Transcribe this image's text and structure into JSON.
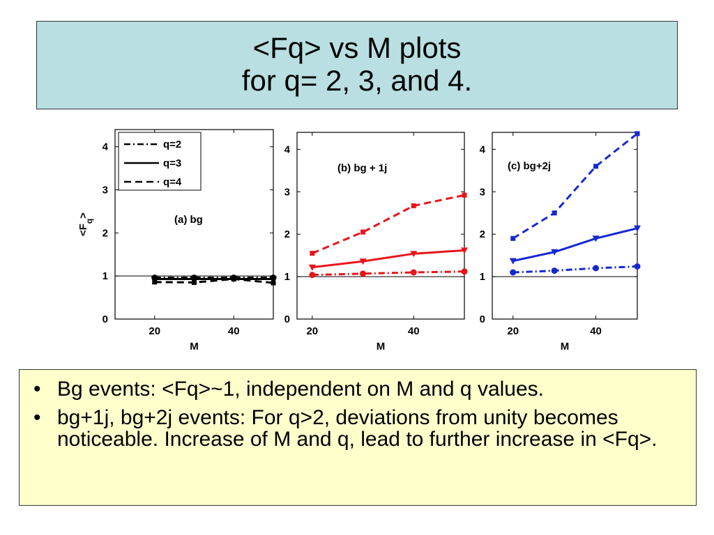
{
  "title": {
    "line1": "<Fq> vs M plots",
    "line2": "for q= 2, 3, and 4."
  },
  "bullets": [
    "Bg events: <Fq>~1, independent on M and q values.",
    "bg+1j, bg+2j events: For q>2, deviations from unity becomes noticeable. Increase of M and q, lead to further increase in <Fq>."
  ],
  "bullet_glyph": "•",
  "colors": {
    "title_bg": "#b9dfe3",
    "bullet_bg": "#ffffcc",
    "panel_a": "#000000",
    "panel_b": "#e8141a",
    "panel_c": "#1428d2"
  },
  "chart_data": [
    {
      "type": "line",
      "annotation": "(a)  bg",
      "xlabel": "M",
      "ylabel": "<F",
      "ylabel_sub": "q",
      "ylabel_sup": ">",
      "xticks": [
        "20",
        "40"
      ],
      "yticks": [
        "0",
        "1",
        "2",
        "3",
        "4"
      ],
      "xlim": [
        10,
        50
      ],
      "ylim": [
        0,
        4.4
      ],
      "reference_line": 1,
      "color": "#000000",
      "legend": [
        "q=2",
        "q=3",
        "q=4"
      ],
      "legend_position": "top-left",
      "x": [
        20,
        30,
        40,
        50
      ],
      "series": [
        {
          "name": "q=2",
          "style": "dashdot",
          "marker": "circle",
          "values": [
            0.96,
            0.96,
            0.96,
            0.96
          ]
        },
        {
          "name": "q=3",
          "style": "solid",
          "marker": "triangle",
          "values": [
            0.93,
            0.93,
            0.93,
            0.93
          ]
        },
        {
          "name": "q=4",
          "style": "dashed",
          "marker": "square",
          "values": [
            0.86,
            0.85,
            0.93,
            0.84
          ]
        }
      ]
    },
    {
      "type": "line",
      "annotation": "(b) bg + 1j",
      "xlabel": "M",
      "xticks": [
        "20",
        "40"
      ],
      "yticks": [
        "0",
        "1",
        "2",
        "3",
        "4"
      ],
      "xlim": [
        17,
        50
      ],
      "ylim": [
        0,
        4.4
      ],
      "reference_line": 1,
      "color": "#e8141a",
      "x": [
        20,
        30,
        40,
        50
      ],
      "series": [
        {
          "style": "dashdot",
          "marker": "circle",
          "values": [
            1.04,
            1.07,
            1.1,
            1.12
          ]
        },
        {
          "style": "solid",
          "marker": "triangle",
          "values": [
            1.22,
            1.36,
            1.54,
            1.62
          ]
        },
        {
          "style": "dashed",
          "marker": "square",
          "values": [
            1.55,
            2.05,
            2.67,
            2.92
          ]
        }
      ]
    },
    {
      "type": "line",
      "annotation": "(c) bg+2j",
      "xlabel": "M",
      "xticks": [
        "20",
        "40"
      ],
      "yticks": [
        "0",
        "1",
        "2",
        "3",
        "4"
      ],
      "xlim": [
        15,
        50
      ],
      "ylim": [
        0,
        4.4
      ],
      "reference_line": 1,
      "color": "#1428d2",
      "x": [
        20,
        30,
        40,
        50
      ],
      "series": [
        {
          "style": "dashdot",
          "marker": "circle",
          "values": [
            1.1,
            1.14,
            1.2,
            1.24
          ]
        },
        {
          "style": "solid",
          "marker": "triangle",
          "values": [
            1.37,
            1.58,
            1.9,
            2.14
          ]
        },
        {
          "style": "dashed",
          "marker": "square",
          "values": [
            1.9,
            2.5,
            3.6,
            4.37
          ]
        }
      ]
    }
  ]
}
